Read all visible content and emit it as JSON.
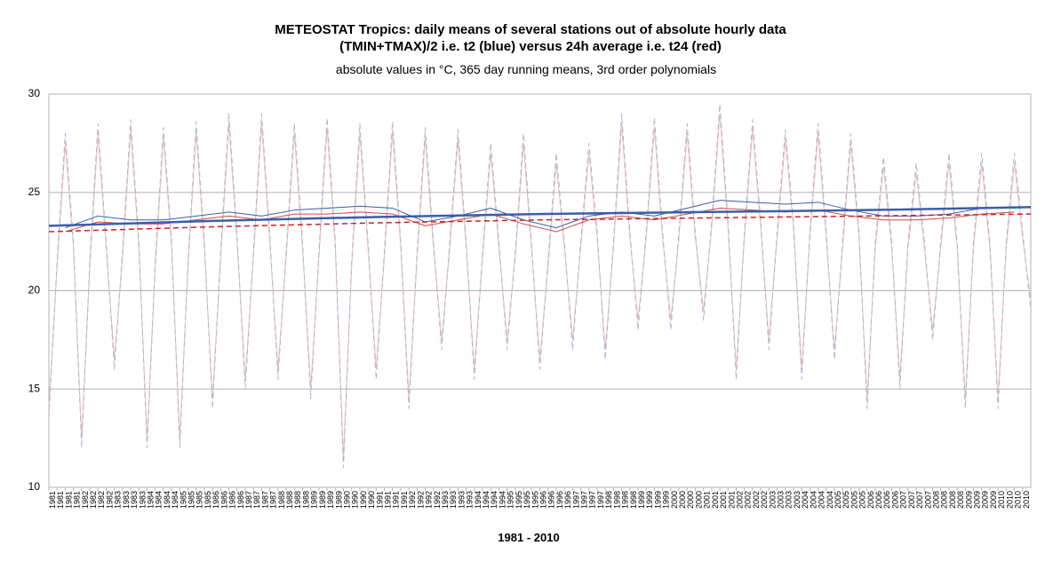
{
  "chart_data": {
    "type": "line",
    "title": [
      "METEOSTAT Tropics: daily means of several stations out of absolute hourly data",
      "(TMIN+TMAX)/2 i.e. t2 (blue) versus 24h average i.e. t24 (red)"
    ],
    "subtitle": "absolute  values in °C, 365 day running means, 3rd order polynomials",
    "xlabel": "1981 - 2010",
    "ylim": [
      10,
      30
    ],
    "yticks": [
      10,
      15,
      20,
      25,
      30
    ],
    "grid": true,
    "xlim": [
      1981,
      2011
    ],
    "xticks": [
      1981,
      {
        "value": 1981.25,
        "label": "1981"
      },
      {
        "value": 1981.5,
        "label": "1981"
      },
      {
        "value": 1981.75,
        "label": "1981"
      },
      1982,
      {
        "value": 1982.25,
        "label": "1982"
      },
      {
        "value": 1982.5,
        "label": "1982"
      },
      {
        "value": 1982.75,
        "label": "1982"
      },
      1983,
      {
        "value": 1983.25,
        "label": "1983"
      },
      {
        "value": 1983.5,
        "label": "1983"
      },
      {
        "value": 1983.75,
        "label": "1983"
      },
      1984,
      {
        "value": 1984.25,
        "label": "1984"
      },
      {
        "value": 1984.5,
        "label": "1984"
      },
      {
        "value": 1984.75,
        "label": "1984"
      },
      1985,
      {
        "value": 1985.25,
        "label": "1985"
      },
      {
        "value": 1985.5,
        "label": "1985"
      },
      {
        "value": 1985.75,
        "label": "1985"
      },
      1986,
      {
        "value": 1986.25,
        "label": "1986"
      },
      {
        "value": 1986.5,
        "label": "1986"
      },
      {
        "value": 1986.75,
        "label": "1986"
      },
      1987,
      {
        "value": 1987.25,
        "label": "1987"
      },
      {
        "value": 1987.5,
        "label": "1987"
      },
      {
        "value": 1987.75,
        "label": "1987"
      },
      1988,
      {
        "value": 1988.25,
        "label": "1988"
      },
      {
        "value": 1988.5,
        "label": "1988"
      },
      {
        "value": 1988.75,
        "label": "1988"
      },
      1989,
      {
        "value": 1989.25,
        "label": "1989"
      },
      {
        "value": 1989.5,
        "label": "1989"
      },
      {
        "value": 1989.75,
        "label": "1989"
      },
      1990,
      {
        "value": 1990.25,
        "label": "1990"
      },
      {
        "value": 1990.5,
        "label": "1990"
      },
      {
        "value": 1990.75,
        "label": "1990"
      },
      1991,
      {
        "value": 1991.25,
        "label": "1991"
      },
      {
        "value": 1991.5,
        "label": "1991"
      },
      {
        "value": 1991.75,
        "label": "1991"
      },
      1992,
      {
        "value": 1992.25,
        "label": "1992"
      },
      {
        "value": 1992.5,
        "label": "1992"
      },
      {
        "value": 1992.75,
        "label": "1992"
      },
      1993,
      {
        "value": 1993.25,
        "label": "1993"
      },
      {
        "value": 1993.5,
        "label": "1993"
      },
      {
        "value": 1993.75,
        "label": "1993"
      },
      1994,
      {
        "value": 1994.25,
        "label": "1994"
      },
      {
        "value": 1994.5,
        "label": "1994"
      },
      {
        "value": 1994.75,
        "label": "1994"
      },
      1995,
      {
        "value": 1995.25,
        "label": "1995"
      },
      {
        "value": 1995.5,
        "label": "1995"
      },
      {
        "value": 1995.75,
        "label": "1995"
      },
      1996,
      {
        "value": 1996.25,
        "label": "1996"
      },
      {
        "value": 1996.5,
        "label": "1996"
      },
      {
        "value": 1996.75,
        "label": "1996"
      },
      1997,
      {
        "value": 1997.25,
        "label": "1997"
      },
      {
        "value": 1997.5,
        "label": "1997"
      },
      {
        "value": 1997.75,
        "label": "1997"
      },
      1998,
      {
        "value": 1998.25,
        "label": "1998"
      },
      {
        "value": 1998.5,
        "label": "1998"
      },
      {
        "value": 1998.75,
        "label": "1998"
      },
      1999,
      {
        "value": 1999.25,
        "label": "1999"
      },
      {
        "value": 1999.5,
        "label": "1999"
      },
      {
        "value": 1999.75,
        "label": "1999"
      },
      2000,
      {
        "value": 2000.25,
        "label": "2000"
      },
      {
        "value": 2000.5,
        "label": "2000"
      },
      {
        "value": 2000.75,
        "label": "2000"
      },
      2001,
      {
        "value": 2001.25,
        "label": "2001"
      },
      {
        "value": 2001.5,
        "label": "2001"
      },
      {
        "value": 2001.75,
        "label": "2001"
      },
      2002,
      {
        "value": 2002.25,
        "label": "2002"
      },
      {
        "value": 2002.5,
        "label": "2002"
      },
      {
        "value": 2002.75,
        "label": "2002"
      },
      2003,
      {
        "value": 2003.25,
        "label": "2003"
      },
      {
        "value": 2003.5,
        "label": "2003"
      },
      {
        "value": 2003.75,
        "label": "2003"
      },
      2004,
      {
        "value": 2004.25,
        "label": "2004"
      },
      {
        "value": 2004.5,
        "label": "2004"
      },
      {
        "value": 2004.75,
        "label": "2004"
      },
      2005,
      {
        "value": 2005.25,
        "label": "2005"
      },
      {
        "value": 2005.5,
        "label": "2005"
      },
      {
        "value": 2005.75,
        "label": "2005"
      },
      2006,
      {
        "value": 2006.25,
        "label": "2006"
      },
      {
        "value": 2006.5,
        "label": "2006"
      },
      {
        "value": 2006.75,
        "label": "2006"
      },
      2007,
      {
        "value": 2007.25,
        "label": "2007"
      },
      {
        "value": 2007.5,
        "label": "2007"
      },
      {
        "value": 2007.75,
        "label": "2007"
      },
      2008,
      {
        "value": 2008.25,
        "label": "2008"
      },
      {
        "value": 2008.5,
        "label": "2008"
      },
      {
        "value": 2008.75,
        "label": "2008"
      },
      2009,
      {
        "value": 2009.25,
        "label": "2009"
      },
      {
        "value": 2009.5,
        "label": "2009"
      },
      {
        "value": 2009.75,
        "label": "2009"
      },
      2010,
      {
        "value": 2010.25,
        "label": "2010"
      },
      {
        "value": 2010.5,
        "label": "2010"
      },
      {
        "value": 2010.75,
        "label": "2010"
      }
    ],
    "series": [
      {
        "color": "#f4b8b8",
        "linestyle": "solid",
        "x": [
          1981,
          1981.25,
          1981.5,
          1981.75,
          1982,
          1982.25,
          1982.5,
          1982.75,
          1983,
          1983.25,
          1983.5,
          1983.75,
          1984,
          1984.25,
          1984.5,
          1984.75,
          1985,
          1985.25,
          1985.5,
          1985.75,
          1986,
          1986.25,
          1986.5,
          1986.75,
          1987,
          1987.25,
          1987.5,
          1987.75,
          1988,
          1988.25,
          1988.5,
          1988.75,
          1989,
          1989.25,
          1989.5,
          1989.75,
          1990,
          1990.25,
          1990.5,
          1990.75,
          1991,
          1991.25,
          1991.5,
          1991.75,
          1992,
          1992.25,
          1992.5,
          1992.75,
          1993,
          1993.25,
          1993.5,
          1993.75,
          1994,
          1994.25,
          1994.5,
          1994.75,
          1995,
          1995.25,
          1995.5,
          1995.75,
          1996,
          1996.25,
          1996.5,
          1996.75,
          1997,
          1997.25,
          1997.5,
          1997.75,
          1998,
          1998.25,
          1998.5,
          1998.75,
          1999,
          1999.25,
          1999.5,
          1999.75,
          2000,
          2000.25,
          2000.5,
          2000.75,
          2001,
          2001.25,
          2001.5,
          2001.75,
          2002,
          2002.25,
          2002.5,
          2002.75,
          2003,
          2003.25,
          2003.5,
          2003.75,
          2004,
          2004.25,
          2004.5,
          2004.75,
          2005,
          2005.25,
          2005.5,
          2005.75,
          2006,
          2006.25,
          2006.5,
          2006.75,
          2007,
          2007.25,
          2007.5,
          2007.75,
          2008,
          2008.25,
          2008.5,
          2008.75,
          2009,
          2009.25,
          2009.5,
          2009.75,
          2010,
          2010.25,
          2010.5,
          2010.75,
          2011
        ],
        "values": [
          14,
          21.2,
          27.5,
          22.2,
          12.5,
          21.2,
          28,
          22.2,
          16.5,
          21.7,
          28.2,
          22.2,
          12.5,
          21.2,
          27.8,
          22.2,
          12.5,
          21.2,
          28.1,
          22.2,
          14.5,
          21.7,
          28.5,
          22.5,
          15.5,
          21.7,
          28.5,
          22.5,
          16,
          21.7,
          28,
          22.2,
          15,
          21.7,
          28.3,
          22.2,
          11.5,
          21.2,
          28,
          22.2,
          16,
          21.7,
          28.1,
          22.2,
          14.5,
          21.7,
          27.8,
          22.2,
          17.5,
          22.2,
          27.7,
          22.2,
          16,
          21.7,
          27,
          22.2,
          17.5,
          21.7,
          27.5,
          22,
          16.5,
          21.2,
          26.5,
          22.2,
          17.5,
          22.2,
          27,
          22.7,
          17,
          22.2,
          28.5,
          22.7,
          18.5,
          22.7,
          28.3,
          22.7,
          18.5,
          22.7,
          28,
          22.7,
          19,
          23.2,
          29,
          23.2,
          16,
          22.7,
          28.2,
          23.2,
          17.5,
          22.7,
          27.7,
          23.2,
          16,
          22.7,
          28,
          22.7,
          17,
          22.2,
          27.5,
          22.7,
          14.5,
          22.2,
          26.3,
          22.2,
          15.5,
          22.2,
          26,
          22.2,
          18,
          22.2,
          26.5,
          22.2,
          14.5,
          22.2,
          26.5,
          22.2,
          14.5,
          22.2,
          26.5,
          22.7,
          19.5
        ]
      },
      {
        "color": "#a8b8d8",
        "linestyle": "dashed",
        "x": [
          1981,
          1981.25,
          1981.5,
          1981.75,
          1982,
          1982.25,
          1982.5,
          1982.75,
          1983,
          1983.25,
          1983.5,
          1983.75,
          1984,
          1984.25,
          1984.5,
          1984.75,
          1985,
          1985.25,
          1985.5,
          1985.75,
          1986,
          1986.25,
          1986.5,
          1986.75,
          1987,
          1987.25,
          1987.5,
          1987.75,
          1988,
          1988.25,
          1988.5,
          1988.75,
          1989,
          1989.25,
          1989.5,
          1989.75,
          1990,
          1990.25,
          1990.5,
          1990.75,
          1991,
          1991.25,
          1991.5,
          1991.75,
          1992,
          1992.25,
          1992.5,
          1992.75,
          1993,
          1993.25,
          1993.5,
          1993.75,
          1994,
          1994.25,
          1994.5,
          1994.75,
          1995,
          1995.25,
          1995.5,
          1995.75,
          1996,
          1996.25,
          1996.5,
          1996.75,
          1997,
          1997.25,
          1997.5,
          1997.75,
          1998,
          1998.25,
          1998.5,
          1998.75,
          1999,
          1999.25,
          1999.5,
          1999.75,
          2000,
          2000.25,
          2000.5,
          2000.75,
          2001,
          2001.25,
          2001.5,
          2001.75,
          2002,
          2002.25,
          2002.5,
          2002.75,
          2003,
          2003.25,
          2003.5,
          2003.75,
          2004,
          2004.25,
          2004.5,
          2004.75,
          2005,
          2005.25,
          2005.5,
          2005.75,
          2006,
          2006.25,
          2006.5,
          2006.75,
          2007,
          2007.25,
          2007.5,
          2007.75,
          2008,
          2008.25,
          2008.5,
          2008.75,
          2009,
          2009.25,
          2009.5,
          2009.75,
          2010,
          2010.25,
          2010.5,
          2010.75,
          2011
        ],
        "values": [
          13.5,
          21.5,
          28,
          22.5,
          12,
          21.5,
          28.5,
          22.5,
          16,
          22,
          28.7,
          22.5,
          12,
          21.5,
          28.3,
          22.5,
          12,
          21.5,
          28.6,
          22.5,
          14,
          22,
          29,
          22.8,
          15,
          22,
          29,
          22.8,
          15.5,
          22,
          28.5,
          22.5,
          14.5,
          22,
          28.8,
          22.5,
          11,
          21.5,
          28.5,
          22.5,
          15.5,
          22,
          28.6,
          22.5,
          14,
          22,
          28.3,
          22.5,
          17,
          22.5,
          28.2,
          22.5,
          15.5,
          22,
          27.5,
          22.5,
          17,
          22,
          28,
          22.3,
          16,
          21.5,
          27,
          22.5,
          17,
          22.5,
          27.5,
          23,
          16.5,
          22.5,
          29,
          23,
          18,
          23,
          28.8,
          23,
          18,
          23,
          28.5,
          23,
          18.5,
          23.5,
          29.5,
          23.5,
          15.5,
          23,
          28.7,
          23.5,
          17,
          23,
          28.2,
          23.5,
          15.5,
          23,
          28.5,
          23,
          16.5,
          22.5,
          28,
          23,
          14,
          22.5,
          26.8,
          22.5,
          15,
          22.5,
          26.5,
          22.5,
          17.5,
          22.5,
          27,
          22.5,
          14,
          22.5,
          27,
          22.5,
          14,
          22.5,
          27,
          23,
          19
        ]
      },
      {
        "color": "#d04848",
        "linestyle": "solid",
        "x": [
          1981.5,
          1982.5,
          1983.5,
          1984.5,
          1985.5,
          1986.5,
          1987.5,
          1988.5,
          1989.5,
          1990.5,
          1991.5,
          1992.5,
          1993.5,
          1994.5,
          1995.5,
          1996.5,
          1997.5,
          1998.5,
          1999.5,
          2000.5,
          2001.5,
          2002.5,
          2003.5,
          2004.5,
          2005.5,
          2006.5,
          2007.5,
          2008.5,
          2009.5,
          2010.5
        ],
        "values": [
          23.0,
          23.5,
          23.4,
          23.4,
          23.6,
          23.8,
          23.6,
          23.9,
          23.9,
          24.0,
          23.9,
          23.3,
          23.6,
          23.9,
          23.4,
          23.0,
          23.6,
          23.8,
          23.6,
          23.9,
          24.2,
          24.1,
          24.0,
          24.1,
          23.8,
          23.6,
          23.6,
          23.7,
          23.9,
          24.0
        ]
      },
      {
        "color": "#3a5ea8",
        "linestyle": "solid",
        "x": [
          1981.5,
          1982.5,
          1983.5,
          1984.5,
          1985.5,
          1986.5,
          1987.5,
          1988.5,
          1989.5,
          1990.5,
          1991.5,
          1992.5,
          1993.5,
          1994.5,
          1995.5,
          1996.5,
          1997.5,
          1998.5,
          1999.5,
          2000.5,
          2001.5,
          2002.5,
          2003.5,
          2004.5,
          2005.5,
          2006.5,
          2007.5,
          2008.5,
          2009.5,
          2010.5
        ],
        "values": [
          23.2,
          23.8,
          23.6,
          23.6,
          23.8,
          24.0,
          23.8,
          24.1,
          24.2,
          24.3,
          24.2,
          23.5,
          23.8,
          24.2,
          23.6,
          23.2,
          23.8,
          24.0,
          23.8,
          24.2,
          24.6,
          24.5,
          24.4,
          24.5,
          24.1,
          23.8,
          23.8,
          23.9,
          24.2,
          24.2
        ]
      },
      {
        "color": "#cc2222",
        "linestyle": "dashed",
        "x": [
          1981,
          1986,
          1991,
          1996,
          2001,
          2006,
          2011
        ],
        "values": [
          23.0,
          23.25,
          23.45,
          23.6,
          23.7,
          23.8,
          23.9
        ]
      },
      {
        "color": "#3a5ea8",
        "linestyle": "solid",
        "x": [
          1981,
          1986,
          1991,
          1996,
          2001,
          2006,
          2011
        ],
        "values": [
          23.3,
          23.55,
          23.75,
          23.9,
          24.0,
          24.1,
          24.25
        ]
      }
    ]
  }
}
